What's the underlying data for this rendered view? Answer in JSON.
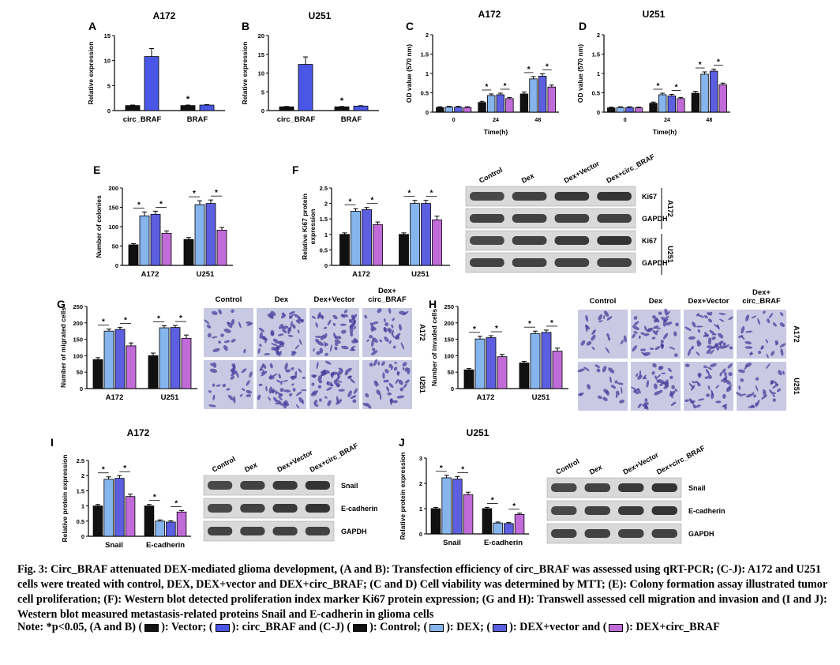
{
  "colors": {
    "control": "#111111",
    "dex": "#86b4ec",
    "vector": "#5b5fe0",
    "circ": "#c06bd8",
    "circ_ab": "#4a56e6",
    "vector_ab": "#111111",
    "error": "#000000",
    "blot_bg": "#d9d9d9",
    "band": "#1c1c1c",
    "stain_bg": "#c9c9e3",
    "stain": "#4a3f9c"
  },
  "blot_lanes": [
    "Control",
    "Dex",
    "Dex+Vector",
    "Dex+circ_BRAF"
  ],
  "blots": {
    "F": {
      "bands": [
        "Ki67",
        "GAPDH",
        "Ki67",
        "GAPDH"
      ],
      "cells": [
        "A172",
        "U251"
      ]
    },
    "I": {
      "bands": [
        "Snail",
        "E-cadherin",
        "GAPDH"
      ]
    },
    "J": {
      "bands": [
        "Snail",
        "E-cadherin",
        "GAPDH"
      ]
    }
  },
  "micro": {
    "G": {
      "cols": [
        "Control",
        "Dex",
        "Dex+Vector",
        "Dex+\ncirc_BRAF"
      ],
      "rows": [
        "A172",
        "U251"
      ],
      "density": [
        [
          0.35,
          0.85,
          0.8,
          0.55
        ],
        [
          0.45,
          0.8,
          0.8,
          0.6
        ]
      ]
    },
    "H": {
      "cols": [
        "Control",
        "Dex",
        "Dex+Vector",
        "Dex+\ncirc_BRAF"
      ],
      "rows": [
        "A172",
        "U251"
      ],
      "density": [
        [
          0.3,
          0.7,
          0.7,
          0.45
        ],
        [
          0.35,
          0.65,
          0.65,
          0.5
        ]
      ]
    }
  },
  "chart_data": [
    {
      "panel": "A",
      "type": "bar",
      "title": "A172",
      "ylabel": "Relative expression",
      "categories": [
        "circ_BRAF",
        "BRAF"
      ],
      "ylim": [
        0,
        15
      ],
      "yticks": [
        0,
        5,
        10,
        15
      ],
      "series": [
        {
          "values": [
            1.0,
            1.0
          ],
          "errors": [
            0.1,
            0.1
          ]
        },
        {
          "values": [
            10.8,
            1.1
          ],
          "errors": [
            1.6,
            0.1
          ]
        }
      ],
      "sig": [
        [
          0,
          1
        ]
      ]
    },
    {
      "panel": "B",
      "type": "bar",
      "title": "U251",
      "ylabel": "Relative expression",
      "categories": [
        "circ_BRAF",
        "BRAF"
      ],
      "ylim": [
        0,
        20
      ],
      "yticks": [
        0,
        5,
        10,
        15,
        20
      ],
      "series": [
        {
          "values": [
            1.0,
            1.0
          ],
          "errors": [
            0.1,
            0.1
          ]
        },
        {
          "values": [
            12.3,
            1.2
          ],
          "errors": [
            2.0,
            0.1
          ]
        }
      ],
      "sig": [
        [
          0,
          1
        ]
      ]
    },
    {
      "panel": "C",
      "type": "bar",
      "title": "A172",
      "ylabel": "OD value (570 nm)",
      "xlabel": "Time(h)",
      "categories": [
        "0",
        "24",
        "48"
      ],
      "ylim": [
        0,
        2.0
      ],
      "yticks": [
        0.0,
        0.5,
        1.0,
        1.5,
        2.0
      ],
      "series": [
        {
          "values": [
            0.12,
            0.25,
            0.47
          ],
          "errors": [
            0.02,
            0.03,
            0.05
          ]
        },
        {
          "values": [
            0.13,
            0.43,
            0.86
          ],
          "errors": [
            0.02,
            0.04,
            0.06
          ]
        },
        {
          "values": [
            0.13,
            0.45,
            0.93
          ],
          "errors": [
            0.02,
            0.04,
            0.06
          ]
        },
        {
          "values": [
            0.12,
            0.35,
            0.65
          ],
          "errors": [
            0.02,
            0.03,
            0.05
          ]
        }
      ],
      "sig": [
        [
          1,
          0,
          1
        ],
        [
          1,
          2,
          3
        ],
        [
          2,
          0,
          1
        ],
        [
          2,
          2,
          3
        ]
      ]
    },
    {
      "panel": "D",
      "type": "bar",
      "title": "U251",
      "ylabel": "OD value (570 nm)",
      "xlabel": "Time(h)",
      "categories": [
        "0",
        "24",
        "48"
      ],
      "ylim": [
        0,
        2.0
      ],
      "yticks": [
        0.0,
        0.5,
        1.0,
        1.5,
        2.0
      ],
      "series": [
        {
          "values": [
            0.11,
            0.23,
            0.49
          ],
          "errors": [
            0.02,
            0.03,
            0.05
          ]
        },
        {
          "values": [
            0.12,
            0.45,
            0.98
          ],
          "errors": [
            0.02,
            0.04,
            0.06
          ]
        },
        {
          "values": [
            0.12,
            0.42,
            1.06
          ],
          "errors": [
            0.02,
            0.04,
            0.05
          ]
        },
        {
          "values": [
            0.11,
            0.35,
            0.71
          ],
          "errors": [
            0.02,
            0.03,
            0.04
          ]
        }
      ],
      "sig": [
        [
          1,
          0,
          1
        ],
        [
          1,
          2,
          3
        ],
        [
          2,
          0,
          1
        ],
        [
          2,
          2,
          3
        ]
      ]
    },
    {
      "panel": "E",
      "type": "bar",
      "ylabel": "Number of colonies",
      "categories": [
        "A172",
        "U251"
      ],
      "ylim": [
        0,
        200
      ],
      "yticks": [
        0,
        50,
        100,
        150,
        200
      ],
      "series": [
        {
          "values": [
            53,
            67
          ],
          "errors": [
            3,
            5
          ]
        },
        {
          "values": [
            128,
            157
          ],
          "errors": [
            10,
            10
          ]
        },
        {
          "values": [
            132,
            160
          ],
          "errors": [
            8,
            9
          ]
        },
        {
          "values": [
            83,
            91
          ],
          "errors": [
            6,
            7
          ]
        }
      ],
      "sig": [
        [
          0,
          0,
          1
        ],
        [
          0,
          2,
          3
        ],
        [
          1,
          0,
          1
        ],
        [
          1,
          2,
          3
        ]
      ]
    },
    {
      "panel": "F",
      "type": "bar",
      "ylabel": "Relative Ki67 protein\nexpression",
      "categories": [
        "A172",
        "U251"
      ],
      "ylim": [
        0,
        2.5
      ],
      "yticks": [
        0.0,
        0.5,
        1.0,
        1.5,
        2.0,
        2.5
      ],
      "series": [
        {
          "values": [
            1.0,
            1.0
          ],
          "errors": [
            0.05,
            0.05
          ]
        },
        {
          "values": [
            1.75,
            2.0
          ],
          "errors": [
            0.08,
            0.1
          ]
        },
        {
          "values": [
            1.8,
            2.0
          ],
          "errors": [
            0.07,
            0.1
          ]
        },
        {
          "values": [
            1.32,
            1.47
          ],
          "errors": [
            0.08,
            0.12
          ]
        }
      ],
      "sig": [
        [
          0,
          0,
          1
        ],
        [
          0,
          2,
          3
        ],
        [
          1,
          0,
          1
        ],
        [
          1,
          2,
          3
        ]
      ]
    },
    {
      "panel": "G",
      "type": "bar",
      "ylabel": "Number of migrated cells",
      "categories": [
        "A172",
        "U251"
      ],
      "ylim": [
        0,
        250
      ],
      "yticks": [
        0,
        50,
        100,
        150,
        200,
        250
      ],
      "series": [
        {
          "values": [
            88,
            100
          ],
          "errors": [
            6,
            8
          ]
        },
        {
          "values": [
            175,
            185
          ],
          "errors": [
            6,
            6
          ]
        },
        {
          "values": [
            180,
            186
          ],
          "errors": [
            6,
            6
          ]
        },
        {
          "values": [
            130,
            153
          ],
          "errors": [
            9,
            10
          ]
        }
      ],
      "sig": [
        [
          0,
          0,
          1
        ],
        [
          0,
          2,
          3
        ],
        [
          1,
          0,
          1
        ],
        [
          1,
          2,
          3
        ]
      ]
    },
    {
      "panel": "H",
      "type": "bar",
      "ylabel": "Number of invaded cells",
      "categories": [
        "A172",
        "U251"
      ],
      "ylim": [
        0,
        250
      ],
      "yticks": [
        0,
        50,
        100,
        150,
        200,
        250
      ],
      "series": [
        {
          "values": [
            57,
            78
          ],
          "errors": [
            4,
            5
          ]
        },
        {
          "values": [
            151,
            167
          ],
          "errors": [
            8,
            8
          ]
        },
        {
          "values": [
            155,
            171
          ],
          "errors": [
            6,
            7
          ]
        },
        {
          "values": [
            97,
            114
          ],
          "errors": [
            7,
            9
          ]
        }
      ],
      "sig": [
        [
          0,
          0,
          1
        ],
        [
          0,
          2,
          3
        ],
        [
          1,
          0,
          1
        ],
        [
          1,
          2,
          3
        ]
      ]
    },
    {
      "panel": "I",
      "type": "bar",
      "title": "A172",
      "ylabel": "Relative protein expression",
      "categories": [
        "Snail",
        "E-cadherin"
      ],
      "ylim": [
        0,
        2.5
      ],
      "yticks": [
        0.0,
        0.5,
        1.0,
        1.5,
        2.0,
        2.5
      ],
      "series": [
        {
          "values": [
            1.0,
            1.0
          ],
          "errors": [
            0.05,
            0.05
          ]
        },
        {
          "values": [
            1.88,
            0.5
          ],
          "errors": [
            0.08,
            0.04
          ]
        },
        {
          "values": [
            1.91,
            0.47
          ],
          "errors": [
            0.09,
            0.04
          ]
        },
        {
          "values": [
            1.31,
            0.8
          ],
          "errors": [
            0.08,
            0.05
          ]
        }
      ],
      "sig": [
        [
          0,
          0,
          1
        ],
        [
          0,
          2,
          3
        ],
        [
          1,
          0,
          1
        ],
        [
          1,
          2,
          3
        ]
      ]
    },
    {
      "panel": "J",
      "type": "bar",
      "title": "U251",
      "ylabel": "Relative protein expression",
      "categories": [
        "Snail",
        "E-cadherin"
      ],
      "ylim": [
        0,
        3
      ],
      "yticks": [
        0,
        1,
        2,
        3
      ],
      "series": [
        {
          "values": [
            1.0,
            1.0
          ],
          "errors": [
            0.05,
            0.05
          ]
        },
        {
          "values": [
            2.22,
            0.43
          ],
          "errors": [
            0.1,
            0.04
          ]
        },
        {
          "values": [
            2.17,
            0.41
          ],
          "errors": [
            0.1,
            0.04
          ]
        },
        {
          "values": [
            1.55,
            0.77
          ],
          "errors": [
            0.1,
            0.05
          ]
        }
      ],
      "sig": [
        [
          0,
          0,
          1
        ],
        [
          0,
          2,
          3
        ],
        [
          1,
          0,
          1
        ],
        [
          1,
          2,
          3
        ]
      ]
    }
  ],
  "caption": {
    "main": "Fig. 3: Circ_BRAF attenuated DEX-mediated glioma development, (A and B): Transfection efficiency of circ_BRAF was assessed using qRT-PCR; (C-J): A172 and U251 cells were treated with control, DEX, DEX+vector and DEX+circ_BRAF; (C and D) Cell viability was determined by MTT; (E): Colony formation assay illustrated tumor cell proliferation; (F): Western blot detected proliferation index marker Ki67 protein expression; (G and H): Transwell assessed cell migration and invasion and (I and J): Western blot measured metastasis-related proteins Snail and E-cadherin in glioma cells",
    "note_prefix": "Note: *p<0.05, (A and B) (",
    "note_1": "): Vector; (",
    "note_2": "): circ_BRAF and (C-J) (",
    "note_3": "): Control; (",
    "note_4": "): DEX; (",
    "note_5": "): DEX+vector and (",
    "note_6": "): DEX+circ_BRAF"
  }
}
